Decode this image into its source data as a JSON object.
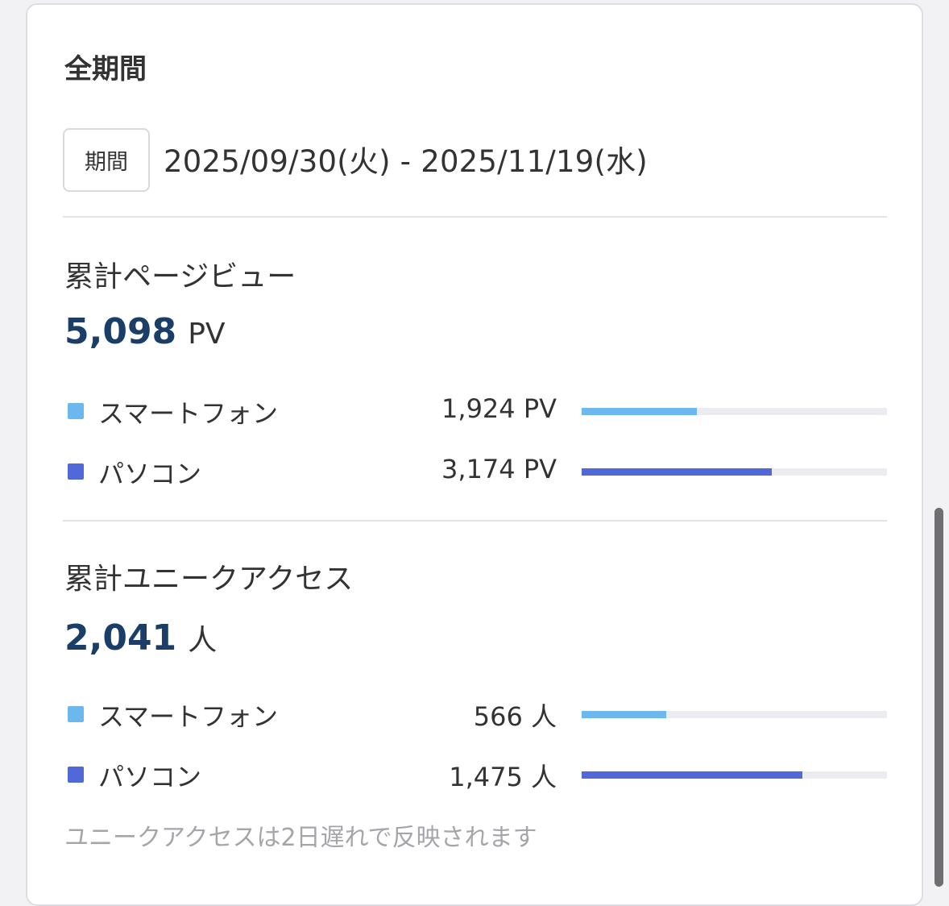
{
  "title": "全期間",
  "period": {
    "label": "期間",
    "range": "2025/09/30(火) - 2025/11/19(水)"
  },
  "colors": {
    "smartphone": "#6cb8ee",
    "pc": "#5068d8",
    "total_number": "#1b3e68",
    "bar_track": "#ececf0"
  },
  "pageviews": {
    "title": "累計ページビュー",
    "total": "5,098",
    "unit": "PV",
    "rows": [
      {
        "label": "スマートフォン",
        "value": "1,924 PV",
        "share": 0.377
      },
      {
        "label": "パソコン",
        "value": "3,174 PV",
        "share": 0.623
      }
    ]
  },
  "unique": {
    "title": "累計ユニークアクセス",
    "total": "2,041",
    "unit": "人",
    "rows": [
      {
        "label": "スマートフォン",
        "value": "566 人",
        "share": 0.277
      },
      {
        "label": "パソコン",
        "value": "1,475 人",
        "share": 0.723
      }
    ]
  },
  "note": "ユニークアクセスは2日遅れで反映されます"
}
